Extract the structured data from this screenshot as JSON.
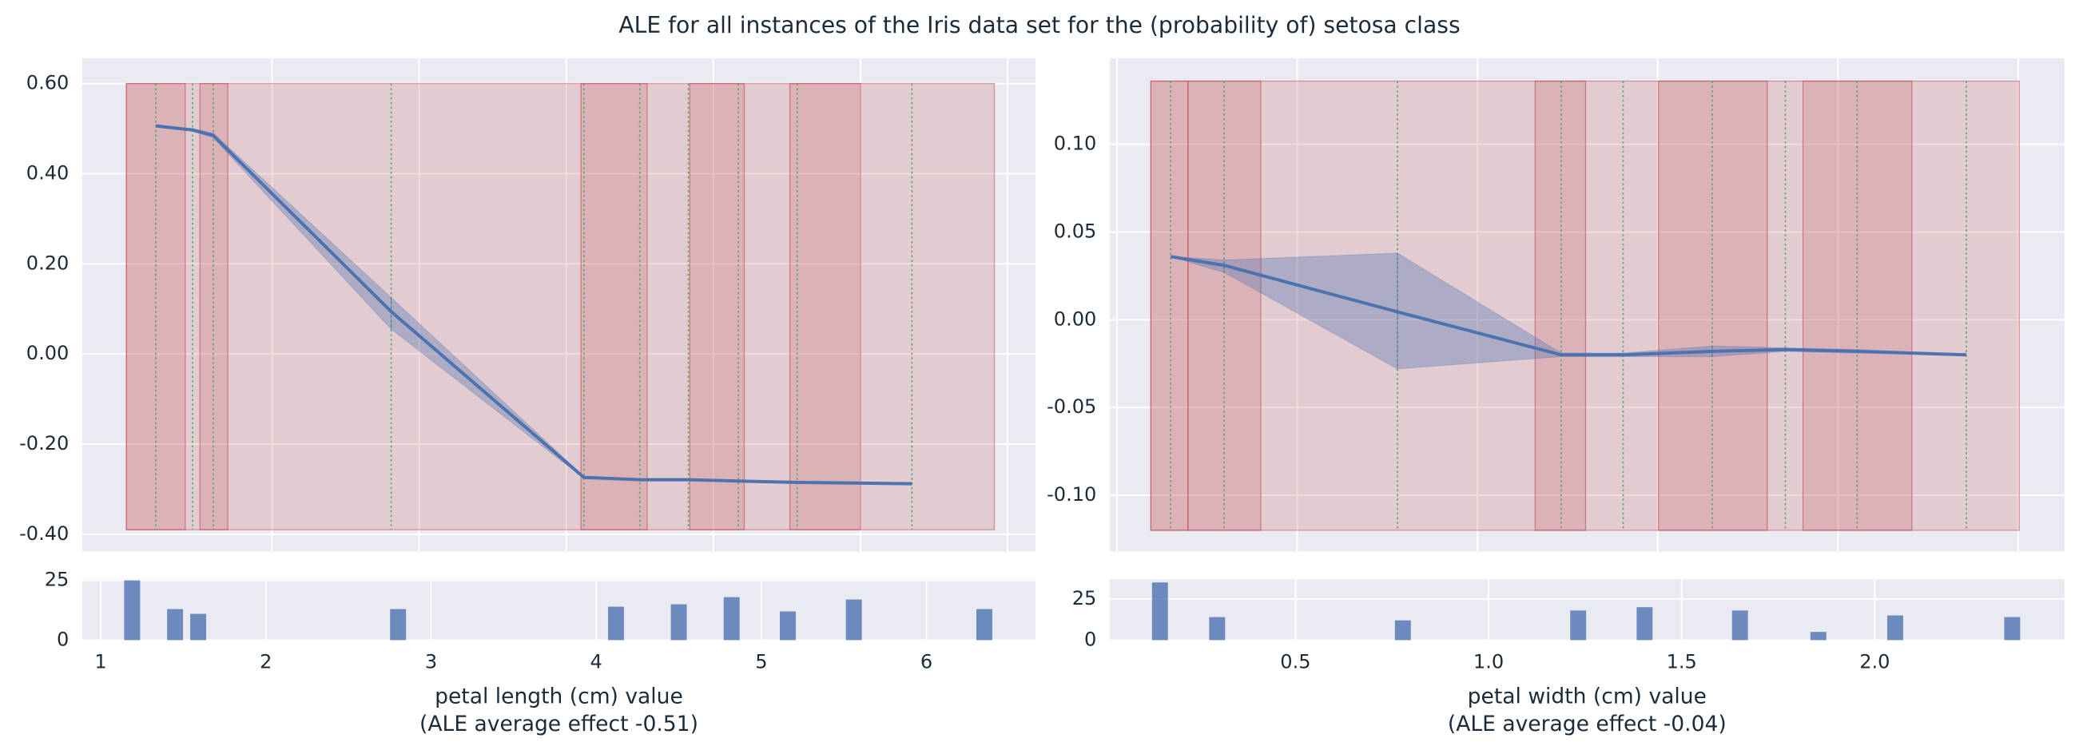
{
  "title": "ALE for all instances of the Iris data set for the (probability of) setosa class",
  "chart_data": [
    {
      "type": "line",
      "x": [
        1.21,
        1.46,
        1.6,
        2.81,
        4.12,
        4.5,
        4.83,
        5.17,
        5.57,
        6.35
      ],
      "values": [
        0.506,
        0.497,
        0.485,
        0.094,
        -0.274,
        -0.279,
        -0.279,
        -0.282,
        -0.285,
        -0.288
      ],
      "band_upper": [
        0.506,
        0.5,
        0.49,
        0.125,
        -0.272,
        -0.277,
        -0.277,
        -0.28,
        -0.283,
        -0.288
      ],
      "band_lower": [
        0.506,
        0.494,
        0.48,
        0.055,
        -0.276,
        -0.281,
        -0.281,
        -0.284,
        -0.287,
        -0.288
      ],
      "color": "#4c72b0",
      "band_color": "#4c72b0",
      "marker_line_color": "#55a868",
      "shade_range": [
        1.01,
        6.91
      ],
      "shade_y": [
        -0.39,
        0.6
      ],
      "shade_color": "#c44e52",
      "shaded_intervals": [
        [
          1.01,
          1.41
        ],
        [
          1.51,
          1.7
        ],
        [
          4.1,
          4.55
        ],
        [
          4.84,
          5.21
        ],
        [
          5.52,
          6.0
        ]
      ],
      "xlim": [
        0.71,
        7.19
      ],
      "ylim": [
        -0.438,
        0.656
      ],
      "xgrid": [
        2,
        3,
        4,
        5,
        6,
        7
      ],
      "yticks": [
        {
          "value": 0.6,
          "label": "0.60"
        },
        {
          "value": 0.4,
          "label": "0.40"
        },
        {
          "value": 0.2,
          "label": "0.20"
        },
        {
          "value": 0,
          "label": "0.00"
        },
        {
          "value": -0.2,
          "label": "-0.20"
        },
        {
          "value": -0.4,
          "label": "-0.40"
        }
      ]
    },
    {
      "type": "bar",
      "x": [
        1.19,
        1.45,
        1.59,
        2.8,
        4.12,
        4.5,
        4.82,
        5.16,
        5.56,
        6.35
      ],
      "values": [
        25,
        13,
        11,
        13,
        14,
        15,
        18,
        12,
        17,
        13
      ],
      "color": "#4c72b0",
      "xlim": [
        0.888,
        6.66
      ],
      "ylim": [
        0,
        25.5
      ],
      "xticks": [
        1,
        2,
        3,
        4,
        5,
        6
      ],
      "yticks": [
        0,
        25
      ],
      "xlabel": "petal length (cm) value",
      "xlabel_note": "(ALE average effect -0.51)"
    },
    {
      "type": "line",
      "x": [
        0.149,
        0.297,
        0.778,
        1.232,
        1.404,
        1.651,
        1.854,
        2.053,
        2.356
      ],
      "values": [
        0.036,
        0.031,
        0.0045,
        -0.02,
        -0.02,
        -0.018,
        -0.017,
        -0.018,
        -0.02
      ],
      "band_upper": [
        0.036,
        0.034,
        0.038,
        -0.019,
        -0.019,
        -0.015,
        -0.016,
        -0.017,
        -0.02
      ],
      "band_lower": [
        0.036,
        0.027,
        -0.028,
        -0.021,
        -0.021,
        -0.021,
        -0.018,
        -0.019,
        -0.02
      ],
      "color": "#4c72b0",
      "band_color": "#4c72b0",
      "marker_line_color": "#55a868",
      "shade_range": [
        0.094,
        2.503
      ],
      "shade_y": [
        -0.12,
        0.136
      ],
      "shade_color": "#c44e52",
      "shaded_intervals": [
        [
          0.094,
          0.197
        ],
        [
          0.197,
          0.399
        ],
        [
          1.16,
          1.3
        ],
        [
          1.502,
          1.804
        ],
        [
          1.903,
          2.205
        ]
      ],
      "xlim": [
        -0.02,
        2.628
      ],
      "ylim": [
        -0.132,
        0.149
      ],
      "xgrid": [
        0,
        0.5,
        1,
        1.5,
        2,
        2.5
      ],
      "yticks": [
        {
          "value": 0.1,
          "label": "0.10"
        },
        0.05,
        {
          "value": 0,
          "label": "0.00"
        },
        -0.05,
        {
          "value": -0.1,
          "label": "-0.10"
        }
      ]
    },
    {
      "type": "bar",
      "x": [
        0.149,
        0.297,
        0.778,
        1.232,
        1.404,
        1.651,
        1.854,
        2.053,
        2.356
      ],
      "values": [
        35,
        14,
        12,
        18,
        20,
        18,
        5,
        15,
        14
      ],
      "color": "#4c72b0",
      "xlim": [
        0.019,
        2.491
      ],
      "ylim": [
        0,
        37
      ],
      "xticks": [
        0.5,
        {
          "value": 1,
          "label": "1.0"
        },
        1.5,
        {
          "value": 2,
          "label": "2.0"
        }
      ],
      "yticks": [
        0,
        25
      ],
      "xlabel": "petal width (cm) value",
      "xlabel_note": "(ALE average effect -0.04)"
    }
  ]
}
